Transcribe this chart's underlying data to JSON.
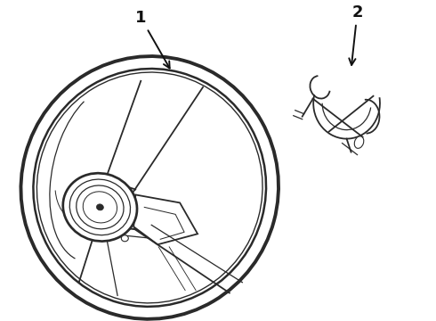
{
  "background_color": "#ffffff",
  "line_color": "#2a2a2a",
  "label_color": "#111111",
  "label_fontsize": 13,
  "fig_width": 4.9,
  "fig_height": 3.6,
  "dpi": 100,
  "label1": "1",
  "label2": "2"
}
